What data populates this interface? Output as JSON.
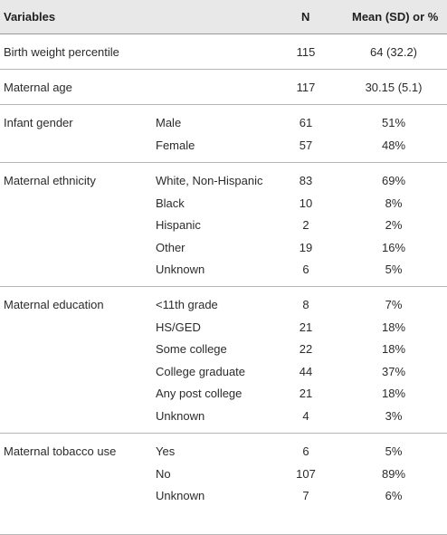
{
  "header": {
    "variables": "Variables",
    "n": "N",
    "mean": "Mean (SD) or %"
  },
  "groups": [
    {
      "variable": "Birth weight percentile",
      "rows": [
        {
          "sub": "",
          "n": "115",
          "value": "64 (32.2)"
        }
      ]
    },
    {
      "variable": "Maternal age",
      "rows": [
        {
          "sub": "",
          "n": "117",
          "value": "30.15 (5.1)"
        }
      ]
    },
    {
      "variable": "Infant gender",
      "rows": [
        {
          "sub": "Male",
          "n": "61",
          "value": "51%"
        },
        {
          "sub": "Female",
          "n": "57",
          "value": "48%"
        }
      ]
    },
    {
      "variable": "Maternal ethnicity",
      "rows": [
        {
          "sub": "White, Non-Hispanic",
          "n": "83",
          "value": "69%"
        },
        {
          "sub": "Black",
          "n": "10",
          "value": "8%"
        },
        {
          "sub": "Hispanic",
          "n": "2",
          "value": "2%"
        },
        {
          "sub": "Other",
          "n": "19",
          "value": "16%"
        },
        {
          "sub": "Unknown",
          "n": "6",
          "value": "5%"
        }
      ]
    },
    {
      "variable": "Maternal education",
      "rows": [
        {
          "sub": "<11th grade",
          "n": "8",
          "value": "7%"
        },
        {
          "sub": "HS/GED",
          "n": "21",
          "value": "18%"
        },
        {
          "sub": "Some college",
          "n": "22",
          "value": "18%"
        },
        {
          "sub": "College graduate",
          "n": "44",
          "value": "37%"
        },
        {
          "sub": "Any post college",
          "n": "21",
          "value": "18%"
        },
        {
          "sub": "Unknown",
          "n": "4",
          "value": "3%"
        }
      ]
    },
    {
      "variable": "Maternal tobacco use",
      "rows": [
        {
          "sub": "Yes",
          "n": "6",
          "value": "5%"
        },
        {
          "sub": "No",
          "n": "107",
          "value": "89%"
        },
        {
          "sub": "Unknown",
          "n": "7",
          "value": "6%"
        }
      ]
    }
  ]
}
